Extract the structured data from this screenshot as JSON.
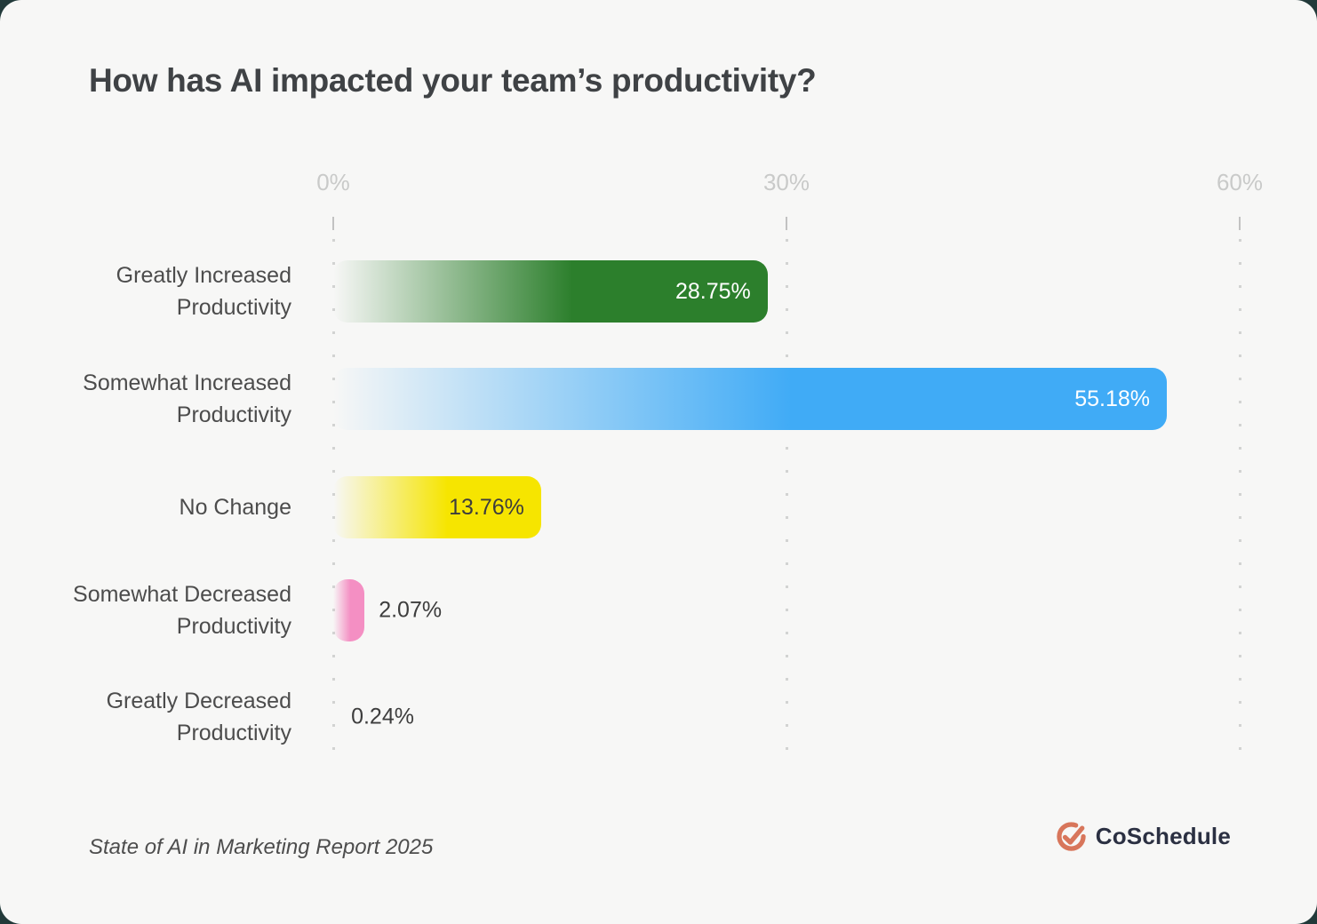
{
  "chart_data": {
    "type": "bar",
    "orientation": "horizontal",
    "title": "How has AI impacted your team’s productivity?",
    "categories": [
      "Greatly Increased Productivity",
      "Somewhat Increased Productivity",
      "No Change",
      "Somewhat Decreased Productivity",
      "Greatly Decreased Productivity"
    ],
    "values": [
      28.75,
      55.18,
      13.76,
      2.07,
      0.24
    ],
    "value_labels": [
      "28.75%",
      "55.18%",
      "13.76%",
      "2.07%",
      "0.24%"
    ],
    "bar_colors": [
      "#2c7f2c",
      "#40abf6",
      "#f6e500",
      "#f48fc3",
      null
    ],
    "bar_visible": [
      true,
      true,
      true,
      true,
      false
    ],
    "value_label_styles": [
      "inside-light",
      "inside-light",
      "inside-dark",
      "outside",
      "outside"
    ],
    "bar_gradient": "fade from transparent at left to solid color",
    "axis": {
      "min": 0,
      "max": 60,
      "ticks": [
        "0%",
        "30%",
        "60%"
      ],
      "tick_values": [
        0,
        30,
        60
      ]
    },
    "gridlines": "dotted-vertical",
    "legend": "none",
    "source_note": "State of AI in Marketing Report 2025"
  },
  "footer": {
    "brand_name": "CoSchedule"
  },
  "icons": {
    "brand_logo": "coschedule-checkmark-icon"
  },
  "colors": {
    "page_background": "#223a3a",
    "card_background": "#f7f7f6",
    "title_color": "#3f4245",
    "category_label_color": "#4c4c4c",
    "axis_label_color": "#c9cac9",
    "gridline_color": "#d2d3d2",
    "dark_value_label_color": "#3d3d3d",
    "logo_coral": "#d8765b",
    "logo_text_color": "#2b3042"
  }
}
